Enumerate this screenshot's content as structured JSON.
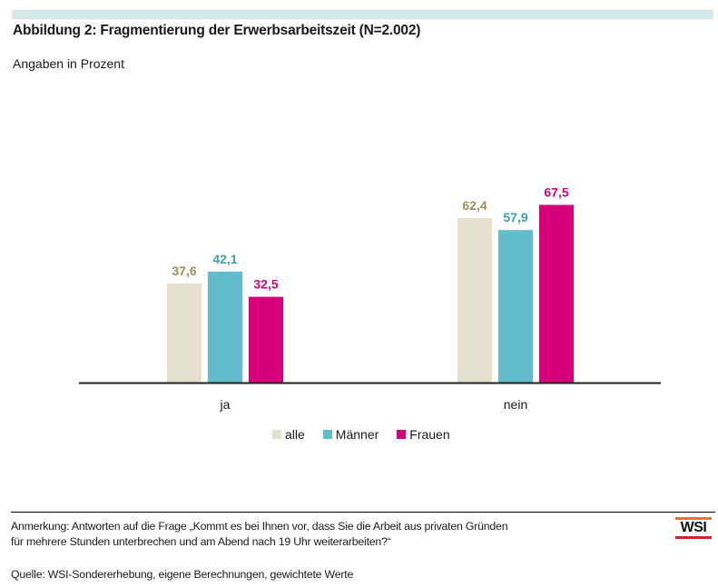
{
  "header": {
    "title": "Abbildung 2: Fragmentierung der Erwerbsarbeitszeit (N=2.002)",
    "subtitle": "Angaben in Prozent"
  },
  "chart_data": {
    "type": "bar",
    "title": "Abbildung 2: Fragmentierung der Erwerbsarbeitszeit (N=2.002)",
    "subtitle": "Angaben in Prozent",
    "xlabel": "",
    "ylabel": "",
    "ylim": [
      0,
      70
    ],
    "grid": false,
    "legend_position": "bottom",
    "categories": [
      "ja",
      "nein"
    ],
    "series": [
      {
        "name": "alle",
        "color": "#e3e0ce",
        "label_color": "#9c8f5e",
        "values": [
          37.6,
          62.4
        ],
        "labels": [
          "37,6",
          "62,4"
        ]
      },
      {
        "name": "Männer",
        "color": "#62bccb",
        "label_color": "#3f9fb2",
        "values": [
          42.1,
          57.9
        ],
        "labels": [
          "42,1",
          "57,9"
        ]
      },
      {
        "name": "Frauen",
        "color": "#d5007a",
        "label_color": "#d5007a",
        "values": [
          32.5,
          67.5
        ],
        "labels": [
          "32,5",
          "67,5"
        ]
      }
    ]
  },
  "footer": {
    "note_line1": "Anmerkung: Antworten auf die Frage „Kommt es bei Ihnen vor, dass Sie die Arbeit aus privaten Gründen",
    "note_line2": "für mehrere Stunden unterbrechen und am Abend nach 19 Uhr weiterarbeiten?“",
    "source": "Quelle: WSI-Sondererhebung, eigene Berechnungen, gewichtete Werte",
    "logo_text": "WSI"
  },
  "colors": {
    "topbar": "#d6e8e8",
    "axis": "#222222"
  }
}
